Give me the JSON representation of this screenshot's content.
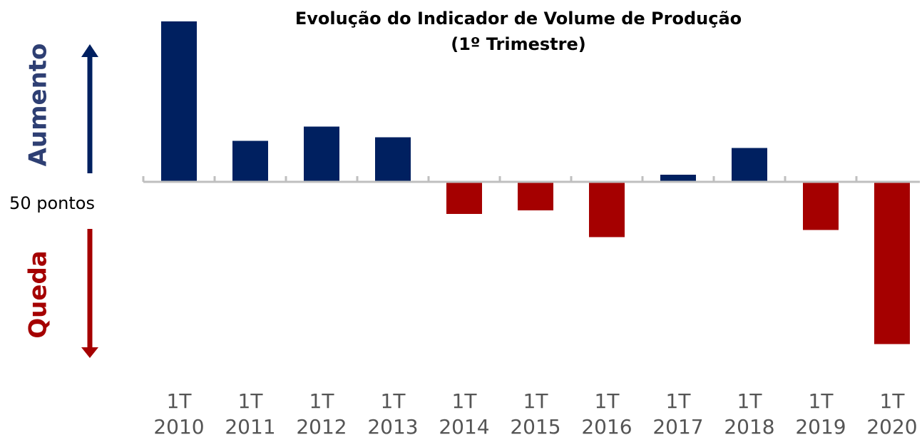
{
  "chart_data": {
    "type": "bar",
    "title": "Evolução do Indicador de Volume de Produção",
    "subtitle": "(1º Trimestre)",
    "categories": [
      "1T\n2010",
      "1T\n2011",
      "1T\n2012",
      "1T\n2013",
      "1T\n2014",
      "1T\n2015",
      "1T\n2016",
      "1T\n2017",
      "1T\n2018",
      "1T\n2019",
      "1T\n2020"
    ],
    "values": [
      59.0,
      52.3,
      53.1,
      52.5,
      48.2,
      48.4,
      46.9,
      50.4,
      51.9,
      47.3,
      40.9
    ],
    "baseline": 50,
    "baseline_label": "50 pontos",
    "up_label": "Aumento",
    "down_label": "Queda",
    "color_up": "#002060",
    "color_down": "#a50000",
    "ylim": [
      40,
      60
    ]
  }
}
